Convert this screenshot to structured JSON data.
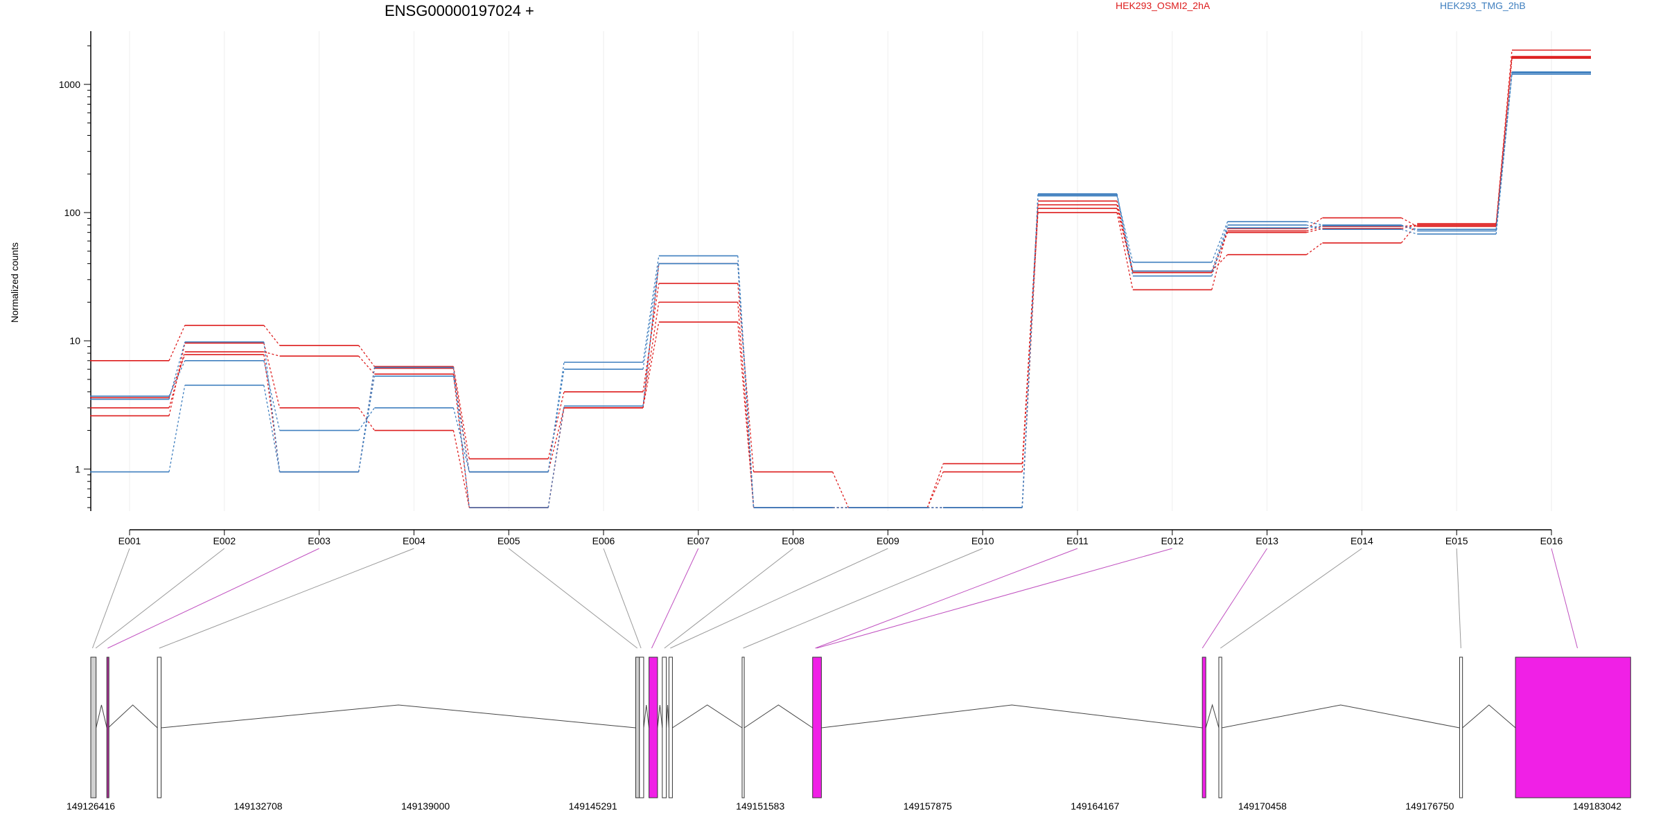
{
  "chart_data": {
    "type": "line",
    "title": "ENSG00000197024 +",
    "ylabel": "Normalized counts",
    "xlabel": "",
    "yscale": "log",
    "ylim": [
      0.5,
      2600
    ],
    "y_ticks": [
      "1",
      "10",
      "100",
      "1000"
    ],
    "legend": [
      {
        "label": "HEK293_OSMI2_2hA",
        "color": "#dd1c1c"
      },
      {
        "label": "HEK293_TMG_2hB",
        "color": "#3f7fbf"
      }
    ],
    "legend_placement": "top",
    "grid": true,
    "categories": [
      "E001",
      "E002",
      "E003",
      "E004",
      "E005",
      "E006",
      "E007",
      "E008",
      "E009",
      "E010",
      "E011",
      "E012",
      "E013",
      "E014",
      "E015",
      "E016"
    ],
    "series": [
      {
        "group": "HEK293_OSMI2_2hA",
        "color": "#dd1c1c",
        "values": [
          7.0,
          13.2,
          9.2,
          6.3,
          1.2,
          4.0,
          28,
          0.95,
          0.5,
          1.1,
          115,
          35,
          47,
          58,
          82,
          1850
        ]
      },
      {
        "group": "HEK293_OSMI2_2hA",
        "color": "#dd1c1c",
        "values": [
          3.0,
          8.2,
          7.6,
          5.5,
          0.5,
          3.1,
          20,
          0.5,
          0.5,
          0.95,
          100,
          25,
          75,
          91,
          78,
          1600
        ]
      },
      {
        "group": "HEK293_OSMI2_2hA",
        "color": "#dd1c1c",
        "values": [
          2.6,
          9.6,
          3.0,
          2.0,
          0.5,
          3.0,
          14,
          0.5,
          0.5,
          0.5,
          108,
          34,
          70,
          75,
          80,
          1650
        ]
      },
      {
        "group": "HEK293_OSMI2_2hA",
        "color": "#dd1c1c",
        "values": [
          3.6,
          7.8,
          0.95,
          6.1,
          0.95,
          3.0,
          40,
          0.5,
          0.5,
          0.5,
          123,
          34,
          72,
          78,
          80,
          1620
        ]
      },
      {
        "group": "HEK293_TMG_2hB",
        "color": "#3f7fbf",
        "values": [
          3.7,
          7.0,
          2.0,
          3.0,
          0.95,
          6.0,
          40,
          0.5,
          0.5,
          0.5,
          135,
          41,
          85,
          80,
          72,
          1250
        ]
      },
      {
        "group": "HEK293_TMG_2hB",
        "color": "#3f7fbf",
        "values": [
          0.95,
          4.5,
          0.95,
          5.3,
          0.95,
          6.8,
          46,
          0.5,
          0.5,
          0.5,
          140,
          35,
          80,
          74,
          68,
          1200
        ]
      },
      {
        "group": "HEK293_TMG_2hB",
        "color": "#3f7fbf",
        "values": [
          3.5,
          9.8,
          0.95,
          6.2,
          0.5,
          3.1,
          40,
          0.5,
          0.5,
          0.5,
          138,
          32,
          76,
          79,
          74,
          1230
        ]
      }
    ],
    "gene_model": {
      "coordinates": [
        "149126416",
        "149132708",
        "149139000",
        "149145291",
        "149151583",
        "149157875",
        "149164167",
        "149170458",
        "149176750",
        "149183042"
      ],
      "exons": [
        {
          "start": 149126416,
          "end": 149126616,
          "color": "#d0d0d0"
        },
        {
          "start": 149127020,
          "end": 149127070,
          "color": "#b0309a"
        },
        {
          "start": 149128920,
          "end": 149129060,
          "color": "#ffffff"
        },
        {
          "start": 149146900,
          "end": 149147040,
          "color": "#d0d0d0"
        },
        {
          "start": 149147040,
          "end": 149147200,
          "color": "#ffffff"
        },
        {
          "start": 149147400,
          "end": 149147720,
          "color": "#f020e6"
        },
        {
          "start": 149147900,
          "end": 149148050,
          "color": "#ffffff"
        },
        {
          "start": 149148150,
          "end": 149148280,
          "color": "#ffffff"
        },
        {
          "start": 149150900,
          "end": 149150980,
          "color": "#ffffff"
        },
        {
          "start": 149153550,
          "end": 149153880,
          "color": "#f020e6"
        },
        {
          "start": 149168200,
          "end": 149168330,
          "color": "#f020e6"
        },
        {
          "start": 149168820,
          "end": 149168930,
          "color": "#ffffff"
        },
        {
          "start": 149177870,
          "end": 149177980,
          "color": "#ffffff"
        },
        {
          "start": 149179970,
          "end": 149184300,
          "color": "#f020e6"
        }
      ],
      "bin_links": [
        {
          "bin": "E001",
          "to": 149126480,
          "color": "#999999"
        },
        {
          "bin": "E002",
          "to": 149126600,
          "color": "#999999"
        },
        {
          "bin": "E003",
          "to": 149127050,
          "color": "#c050c0"
        },
        {
          "bin": "E004",
          "to": 149128990,
          "color": "#999999"
        },
        {
          "bin": "E005",
          "to": 149146960,
          "color": "#999999"
        },
        {
          "bin": "E006",
          "to": 149147100,
          "color": "#999999"
        },
        {
          "bin": "E007",
          "to": 149147500,
          "color": "#c050c0"
        },
        {
          "bin": "E008",
          "to": 149147980,
          "color": "#999999"
        },
        {
          "bin": "E009",
          "to": 149148200,
          "color": "#999999"
        },
        {
          "bin": "E010",
          "to": 149150940,
          "color": "#999999"
        },
        {
          "bin": "E011",
          "to": 149153650,
          "color": "#c050c0"
        },
        {
          "bin": "E012",
          "to": 149153700,
          "color": "#c050c0"
        },
        {
          "bin": "E013",
          "to": 149168200,
          "color": "#c050c0"
        },
        {
          "bin": "E014",
          "to": 149168880,
          "color": "#999999"
        },
        {
          "bin": "E015",
          "to": 149177920,
          "color": "#999999"
        },
        {
          "bin": "E016",
          "to": 149182300,
          "color": "#c050c0"
        }
      ]
    }
  }
}
